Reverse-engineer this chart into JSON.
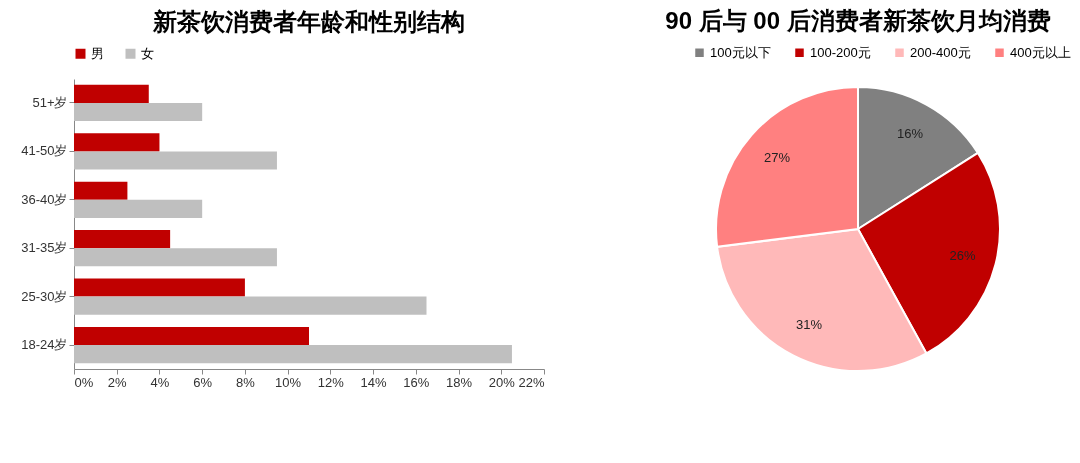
{
  "chart_data": [
    {
      "type": "bar",
      "orientation": "horizontal",
      "title": "新茶饮消费者年龄和性别结构",
      "categories": [
        "51+岁",
        "41-50岁",
        "36-40岁",
        "31-35岁",
        "25-30岁",
        "18-24岁"
      ],
      "series": [
        {
          "name": "男",
          "color": "#c00000",
          "values": [
            3.5,
            4.0,
            2.5,
            4.5,
            8.0,
            11.0
          ]
        },
        {
          "name": "女",
          "color": "#bfbfbf",
          "values": [
            6.0,
            9.5,
            6.0,
            9.5,
            16.5,
            20.5
          ]
        }
      ],
      "xlim": [
        0,
        22
      ],
      "xticks": [
        {
          "value": 0,
          "label": "0%"
        },
        {
          "value": 2,
          "label": "2%"
        },
        {
          "value": 4,
          "label": "4%"
        },
        {
          "value": 6,
          "label": "6%"
        },
        {
          "value": 8,
          "label": "8%"
        },
        {
          "value": 10,
          "label": "10%"
        },
        {
          "value": 12,
          "label": "12%"
        },
        {
          "value": 14,
          "label": "14%"
        },
        {
          "value": 16,
          "label": "16%"
        },
        {
          "value": 18,
          "label": "18%"
        },
        {
          "value": 20,
          "label": "20%"
        },
        {
          "value": 22,
          "label": "22%"
        }
      ],
      "legend": "top"
    },
    {
      "type": "pie",
      "title": "90 后与 00 后消费者新茶饮月均消费",
      "categories": [
        "100元以下",
        "100-200元",
        "200-400元",
        "400元以上"
      ],
      "values": [
        16,
        26,
        31,
        27
      ],
      "colors": [
        "#808080",
        "#c00000",
        "#ffb9b9",
        "#ff8080"
      ],
      "value_labels": [
        "16%",
        "26%",
        "31%",
        "27%"
      ],
      "legend": "top"
    }
  ]
}
